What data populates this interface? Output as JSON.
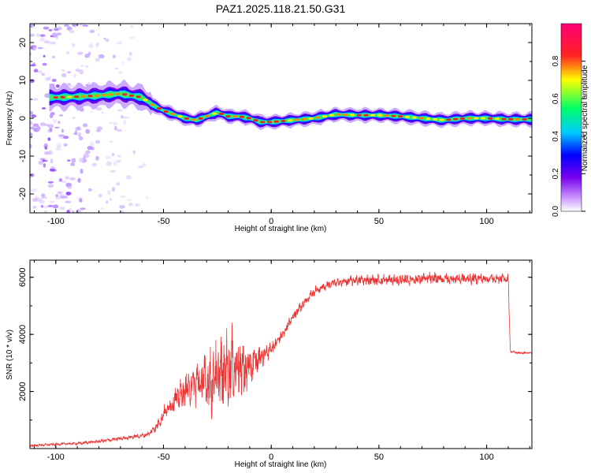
{
  "title": "PAZ1.2025.118.21.50.G31",
  "colors": {
    "trace": "#ee3333",
    "axis": "#000000",
    "colormap": [
      "#ffffff",
      "#cc99ff",
      "#7700ee",
      "#0000ff",
      "#00ccff",
      "#00ff66",
      "#ffff00",
      "#ff2222",
      "#ff0077"
    ]
  },
  "chart_data": [
    {
      "type": "heatmap",
      "xlabel": "Height of straight line (km)",
      "ylabel": "Frequency (Hz)",
      "xlim": [
        -112,
        121
      ],
      "ylim": [
        -25,
        25
      ],
      "xticks": [
        -100,
        -50,
        0,
        50,
        100
      ],
      "yticks": [
        -20,
        -10,
        0,
        10,
        20
      ],
      "colorbar": {
        "label": "Normalized spectral amplitude",
        "range": [
          0,
          1
        ],
        "ticks": [
          "0.0",
          "0.2",
          "0.4",
          "0.6",
          "0.8"
        ]
      },
      "ridge": {
        "x": [
          -100,
          -90,
          -80,
          -70,
          -60,
          -55,
          -50,
          -45,
          -40,
          -35,
          -30,
          -25,
          -20,
          -15,
          -10,
          -5,
          0,
          10,
          20,
          30,
          40,
          50,
          60,
          70,
          80,
          90,
          100,
          110,
          120
        ],
        "frequency": [
          5.5,
          5.7,
          6,
          6.5,
          5.5,
          3.5,
          2,
          1,
          0,
          -0.5,
          0.5,
          1.5,
          0.5,
          0.5,
          0,
          -1,
          -1,
          -0.5,
          0,
          1,
          0.8,
          0.8,
          0.5,
          0,
          -0.5,
          0,
          0,
          -0.3,
          -0.3
        ]
      },
      "noise_region_x": [
        -112,
        -57
      ]
    },
    {
      "type": "line",
      "xlabel": "Height of straight line (km)",
      "ylabel": "SNR (10 * v/v)",
      "xlim": [
        -112,
        121
      ],
      "ylim": [
        0,
        6600
      ],
      "xticks": [
        -100,
        -50,
        0,
        50,
        100
      ],
      "yticks": [
        2000,
        4000,
        6000
      ],
      "series": [
        {
          "x": [
            -112,
            -100,
            -90,
            -80,
            -70,
            -60,
            -57,
            -53,
            -50,
            -45,
            -40,
            -35,
            -30,
            -25,
            -20,
            -17,
            -15,
            -12,
            -10,
            -8,
            -5,
            0,
            5,
            10,
            15,
            20,
            25,
            30,
            40,
            50,
            60,
            70,
            80,
            90,
            100,
            110,
            111,
            115,
            121
          ],
          "y": [
            100,
            150,
            180,
            250,
            350,
            450,
            500,
            800,
            1200,
            1700,
            2000,
            2300,
            2300,
            2500,
            2800,
            3000,
            2800,
            2800,
            2800,
            3000,
            3200,
            3500,
            4000,
            4600,
            5100,
            5500,
            5700,
            5800,
            5900,
            5900,
            5900,
            5950,
            5950,
            5950,
            5950,
            5950,
            3400,
            3350,
            3350
          ],
          "spread": [
            60,
            70,
            80,
            90,
            100,
            120,
            140,
            300,
            400,
            600,
            900,
            1300,
            1800,
            2000,
            2000,
            2000,
            1800,
            1500,
            1200,
            900,
            600,
            400,
            350,
            300,
            280,
            260,
            250,
            250,
            280,
            300,
            320,
            330,
            320,
            300,
            280,
            250,
            60,
            60,
            60
          ]
        }
      ]
    }
  ]
}
